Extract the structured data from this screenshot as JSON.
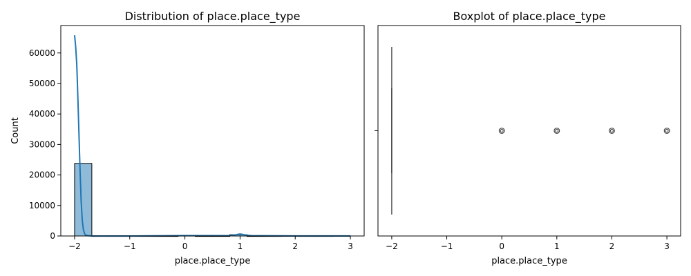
{
  "chart_data": [
    {
      "type": "bar",
      "title": "Distribution of place.place_type",
      "xlabel": "place.place_type",
      "ylabel": "Count",
      "xlim": [
        -2.25,
        3.25
      ],
      "ylim": [
        0,
        69000
      ],
      "xticks": [
        -2,
        -1,
        0,
        1,
        2,
        3
      ],
      "xtick_labels": [
        "−2",
        "−1",
        "0",
        "1",
        "2",
        "3"
      ],
      "yticks": [
        0,
        10000,
        20000,
        30000,
        40000,
        50000,
        60000
      ],
      "ytick_labels": [
        "0",
        "10000",
        "20000",
        "30000",
        "40000",
        "50000",
        "60000"
      ],
      "bins": [
        {
          "x0": -2.0,
          "x1": -1.6875,
          "count": 23800
        },
        {
          "x0": -1.6875,
          "x1": -1.375,
          "count": 0
        },
        {
          "x0": -1.375,
          "x1": -1.0625,
          "count": 0
        },
        {
          "x0": -1.0625,
          "x1": -0.75,
          "count": 0
        },
        {
          "x0": -0.75,
          "x1": -0.4375,
          "count": 0
        },
        {
          "x0": -0.4375,
          "x1": -0.125,
          "count": 0
        },
        {
          "x0": -0.125,
          "x1": 0.1875,
          "count": 120
        },
        {
          "x0": 0.1875,
          "x1": 0.5,
          "count": 0
        },
        {
          "x0": 0.5,
          "x1": 0.8125,
          "count": 0
        },
        {
          "x0": 0.8125,
          "x1": 1.125,
          "count": 420
        },
        {
          "x0": 1.125,
          "x1": 1.4375,
          "count": 0
        },
        {
          "x0": 1.4375,
          "x1": 1.75,
          "count": 0
        },
        {
          "x0": 1.75,
          "x1": 2.0625,
          "count": 20
        },
        {
          "x0": 2.0625,
          "x1": 2.375,
          "count": 0
        },
        {
          "x0": 2.375,
          "x1": 2.6875,
          "count": 0
        },
        {
          "x0": 2.6875,
          "x1": 3.0,
          "count": 20
        }
      ],
      "kde": {
        "x": [
          -2.0,
          -1.98,
          -1.96,
          -1.94,
          -1.92,
          -1.9,
          -1.88,
          -1.86,
          -1.84,
          -1.82,
          -1.8,
          -1.75,
          -1.7,
          -1.5,
          -1.0,
          0.0,
          0.8,
          0.9,
          0.95,
          1.0,
          1.05,
          1.1,
          1.2,
          2.0,
          3.0
        ],
        "y": [
          65800,
          62000,
          56000,
          45000,
          33000,
          21000,
          11000,
          5000,
          2000,
          800,
          300,
          80,
          20,
          0,
          0,
          150,
          120,
          300,
          500,
          650,
          500,
          300,
          120,
          20,
          20
        ]
      },
      "colors": {
        "bar_fill": "#1f77b4",
        "bar_opacity": 0.5,
        "bar_edge": "#000000",
        "kde_line": "#1f77b4"
      }
    },
    {
      "type": "box",
      "title": "Boxplot of place.place_type",
      "xlabel": "place.place_type",
      "ylabel": "",
      "xlim": [
        -2.25,
        3.25
      ],
      "xticks": [
        -2,
        -1,
        0,
        1,
        2,
        3
      ],
      "xtick_labels": [
        "−2",
        "−1",
        "0",
        "1",
        "2",
        "3"
      ],
      "box": {
        "min": -2,
        "q1": -2,
        "median": -2,
        "q3": -2,
        "max": -2
      },
      "outliers": [
        0,
        1,
        2,
        3
      ],
      "colors": {
        "box_line": "#3f3f3f",
        "outlier_edge": "#3f3f3f"
      }
    }
  ]
}
